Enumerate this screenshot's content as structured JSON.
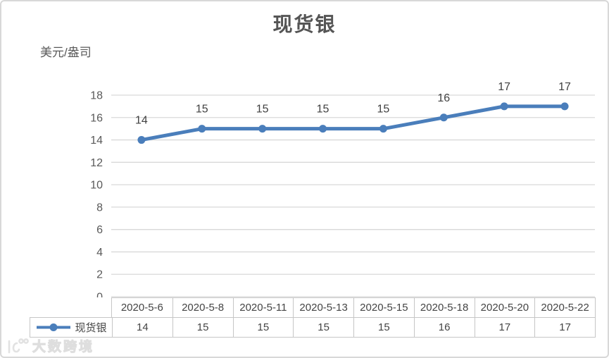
{
  "page": {
    "background": "#ffffff",
    "frame_border_color": "#d8d8d8"
  },
  "chart_data": {
    "type": "line",
    "title": "现货银",
    "unit_label": "美元/盎司",
    "categories": [
      "2020-5-6",
      "2020-5-8",
      "2020-5-11",
      "2020-5-13",
      "2020-5-15",
      "2020-5-18",
      "2020-5-20",
      "2020-5-22"
    ],
    "series": [
      {
        "name": "现货银",
        "values": [
          14,
          15,
          15,
          15,
          15,
          16,
          17,
          17
        ],
        "color": "#4a7ebb"
      }
    ],
    "ylim": [
      0,
      18
    ],
    "ytick_step": 2,
    "yticks": [
      0,
      2,
      4,
      6,
      8,
      10,
      12,
      14,
      16,
      18
    ],
    "grid": true,
    "gridline_color": "#d9d9d9",
    "axis_text_color": "#595959",
    "data_label_color": "#404040",
    "data_labels_shown": true,
    "legend_position": "data-table-left",
    "data_table_shown": true,
    "table_border_color": "#c6c6c6"
  },
  "watermark": {
    "brand_text": "大数跨境"
  }
}
